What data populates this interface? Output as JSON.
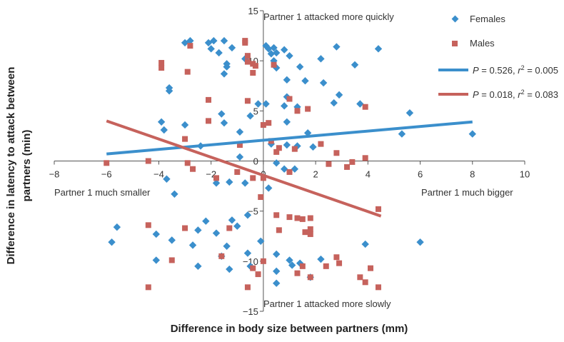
{
  "chart_data": {
    "type": "scatter",
    "xlabel": "Difference in body size between partners (mm)",
    "ylabel": "Difference in latency to attack between partners (min)",
    "xlim": [
      -8,
      10
    ],
    "ylim": [
      -15,
      15
    ],
    "x_ticks": [
      "−8",
      "−6",
      "−4",
      "−2",
      "0",
      "2",
      "4",
      "6",
      "8",
      "10"
    ],
    "y_ticks": [
      "15",
      "10",
      "5",
      "0",
      "−5",
      "−10",
      "−15"
    ],
    "x_tick_values": [
      -8,
      -6,
      -4,
      -2,
      0,
      2,
      4,
      6,
      8,
      10
    ],
    "y_tick_values": [
      15,
      10,
      5,
      0,
      -5,
      -10,
      -15
    ],
    "grid": false,
    "legend_position": "top-right",
    "annotations": {
      "top": "Partner 1 attacked more quickly",
      "bottom": "Partner 1 attacked more slowly",
      "left": "Partner 1 much smaller",
      "right": "Partner 1 much bigger"
    },
    "colors": {
      "females": "#3b8fcc",
      "males": "#c6625c",
      "axis": "#555555",
      "text": "#333333"
    },
    "series": [
      {
        "name": "Females",
        "marker": "diamond",
        "points": [
          [
            -3.0,
            11.8
          ],
          [
            -2.8,
            12.0
          ],
          [
            -2.1,
            11.8
          ],
          [
            -1.9,
            12.0
          ],
          [
            -1.5,
            12.0
          ],
          [
            -2.0,
            11.2
          ],
          [
            -1.7,
            10.8
          ],
          [
            -1.2,
            11.3
          ],
          [
            -1.4,
            9.7
          ],
          [
            -1.4,
            9.4
          ],
          [
            -1.5,
            8.7
          ],
          [
            -0.7,
            10.2
          ],
          [
            0.1,
            11.5
          ],
          [
            0.2,
            11.2
          ],
          [
            0.3,
            10.7
          ],
          [
            0.4,
            11.3
          ],
          [
            0.5,
            10.8
          ],
          [
            0.4,
            10.0
          ],
          [
            0.5,
            9.3
          ],
          [
            0.8,
            11.1
          ],
          [
            1.0,
            10.5
          ],
          [
            1.4,
            9.4
          ],
          [
            2.2,
            10.2
          ],
          [
            2.8,
            11.4
          ],
          [
            3.5,
            9.6
          ],
          [
            4.4,
            11.2
          ],
          [
            1.6,
            8.0
          ],
          [
            0.9,
            8.1
          ],
          [
            0.9,
            6.4
          ],
          [
            2.3,
            7.8
          ],
          [
            2.9,
            6.6
          ],
          [
            2.7,
            5.8
          ],
          [
            3.7,
            5.7
          ],
          [
            -3.6,
            7.3
          ],
          [
            -3.6,
            7.0
          ],
          [
            -1.6,
            4.7
          ],
          [
            -1.5,
            3.8
          ],
          [
            -0.5,
            4.5
          ],
          [
            -0.9,
            2.9
          ],
          [
            -0.2,
            5.7
          ],
          [
            0.1,
            5.7
          ],
          [
            0.8,
            5.5
          ],
          [
            1.3,
            5.4
          ],
          [
            1.7,
            2.8
          ],
          [
            0.9,
            3.9
          ],
          [
            1.3,
            1.5
          ],
          [
            1.9,
            1.4
          ],
          [
            -3.9,
            3.9
          ],
          [
            -3.8,
            3.1
          ],
          [
            -3.0,
            3.6
          ],
          [
            -2.4,
            1.5
          ],
          [
            -0.9,
            0.4
          ],
          [
            0.3,
            1.7
          ],
          [
            0.9,
            1.6
          ],
          [
            0.5,
            -0.2
          ],
          [
            0.8,
            -0.8
          ],
          [
            1.2,
            -0.8
          ],
          [
            5.3,
            2.7
          ],
          [
            5.6,
            4.8
          ],
          [
            8.0,
            2.7
          ],
          [
            -3.7,
            -1.8
          ],
          [
            -3.4,
            -3.3
          ],
          [
            -1.8,
            -2.2
          ],
          [
            -1.3,
            -2.1
          ],
          [
            -0.7,
            -2.2
          ],
          [
            0.2,
            -2.7
          ],
          [
            -0.6,
            -5.4
          ],
          [
            -1.2,
            -5.9
          ],
          [
            -2.2,
            -6.0
          ],
          [
            -1.0,
            -6.5
          ],
          [
            -2.5,
            -6.9
          ],
          [
            -1.8,
            -7.2
          ],
          [
            -2.7,
            -8.4
          ],
          [
            -3.5,
            -7.9
          ],
          [
            -5.6,
            -6.6
          ],
          [
            -5.8,
            -8.1
          ],
          [
            -4.1,
            -7.3
          ],
          [
            -1.4,
            -8.5
          ],
          [
            -0.1,
            -8.0
          ],
          [
            -0.6,
            -9.2
          ],
          [
            0.5,
            -9.3
          ],
          [
            1.0,
            -9.9
          ],
          [
            1.1,
            -10.4
          ],
          [
            2.2,
            -9.8
          ],
          [
            -1.6,
            -9.5
          ],
          [
            -1.3,
            -10.8
          ],
          [
            -0.5,
            -10.5
          ],
          [
            0.5,
            -11.0
          ],
          [
            1.4,
            -10.2
          ],
          [
            1.8,
            -11.6
          ],
          [
            0.5,
            -12.2
          ],
          [
            -2.5,
            -10.5
          ],
          [
            -4.1,
            -9.9
          ],
          [
            3.9,
            -8.3
          ],
          [
            6.0,
            -8.1
          ]
        ]
      },
      {
        "name": "Males",
        "marker": "square",
        "points": [
          [
            -2.8,
            11.5
          ],
          [
            -0.7,
            12.0
          ],
          [
            -0.7,
            11.8
          ],
          [
            -0.6,
            10.5
          ],
          [
            -0.6,
            9.9
          ],
          [
            -0.4,
            9.7
          ],
          [
            -0.3,
            9.5
          ],
          [
            0.4,
            9.6
          ],
          [
            -3.9,
            9.8
          ],
          [
            -3.9,
            9.3
          ],
          [
            -2.9,
            8.9
          ],
          [
            -0.4,
            8.8
          ],
          [
            -2.1,
            6.1
          ],
          [
            -0.6,
            6.0
          ],
          [
            1.0,
            6.2
          ],
          [
            1.3,
            5.0
          ],
          [
            1.7,
            5.2
          ],
          [
            3.9,
            5.4
          ],
          [
            -2.1,
            4.0
          ],
          [
            0.0,
            3.6
          ],
          [
            0.2,
            3.8
          ],
          [
            -3.0,
            2.2
          ],
          [
            0.3,
            2.0
          ],
          [
            -0.9,
            1.6
          ],
          [
            0.6,
            1.3
          ],
          [
            1.2,
            1.2
          ],
          [
            0.5,
            0.9
          ],
          [
            2.2,
            1.7
          ],
          [
            2.8,
            0.8
          ],
          [
            3.4,
            -0.1
          ],
          [
            3.9,
            0.3
          ],
          [
            2.5,
            -0.3
          ],
          [
            3.2,
            -0.6
          ],
          [
            -6.0,
            -0.2
          ],
          [
            -4.4,
            0.0
          ],
          [
            -2.7,
            -0.8
          ],
          [
            -2.9,
            -0.2
          ],
          [
            -1.8,
            -1.7
          ],
          [
            -1.0,
            -1.1
          ],
          [
            -0.4,
            -1.7
          ],
          [
            0.0,
            -1.7
          ],
          [
            1.0,
            -1.1
          ],
          [
            -0.1,
            -3.6
          ],
          [
            4.4,
            -4.8
          ],
          [
            0.5,
            -5.4
          ],
          [
            1.0,
            -5.6
          ],
          [
            1.5,
            -5.8
          ],
          [
            1.3,
            -5.7
          ],
          [
            1.8,
            -5.7
          ],
          [
            -4.4,
            -6.4
          ],
          [
            -3.0,
            -6.7
          ],
          [
            -1.3,
            -6.7
          ],
          [
            0.6,
            -6.9
          ],
          [
            1.6,
            -7.1
          ],
          [
            1.8,
            -6.8
          ],
          [
            1.8,
            -7.3
          ],
          [
            -3.5,
            -9.9
          ],
          [
            -1.6,
            -9.5
          ],
          [
            0.0,
            -10.0
          ],
          [
            1.5,
            -10.5
          ],
          [
            1.3,
            -11.2
          ],
          [
            1.8,
            -11.6
          ],
          [
            2.4,
            -10.5
          ],
          [
            2.8,
            -9.6
          ],
          [
            2.9,
            -10.2
          ],
          [
            -0.4,
            -10.7
          ],
          [
            -0.2,
            -11.3
          ],
          [
            -4.4,
            -12.6
          ],
          [
            -0.6,
            -12.6
          ],
          [
            3.7,
            -11.6
          ],
          [
            3.9,
            -12.1
          ],
          [
            4.1,
            -10.7
          ],
          [
            4.4,
            -12.6
          ]
        ]
      }
    ],
    "trend_lines": [
      {
        "name": "P = 0.526, r2 = 0.005",
        "series": "Females",
        "x": [
          -6.0,
          8.0
        ],
        "y": [
          0.7,
          3.9
        ]
      },
      {
        "name": "P = 0.018, r2 = 0.083",
        "series": "Males",
        "x": [
          -6.0,
          4.5
        ],
        "y": [
          4.0,
          -5.5
        ]
      }
    ],
    "legend": {
      "females_label": "Females",
      "males_label": "Males",
      "fit1_p": "P",
      "fit1_mid": " = 0.526, ",
      "fit1_r": "r",
      "fit1_sup": "2",
      "fit1_end": " = 0.005",
      "fit2_p": "P",
      "fit2_mid": " = 0.018, ",
      "fit2_r": "r",
      "fit2_sup": "2",
      "fit2_end": " = 0.083"
    }
  }
}
